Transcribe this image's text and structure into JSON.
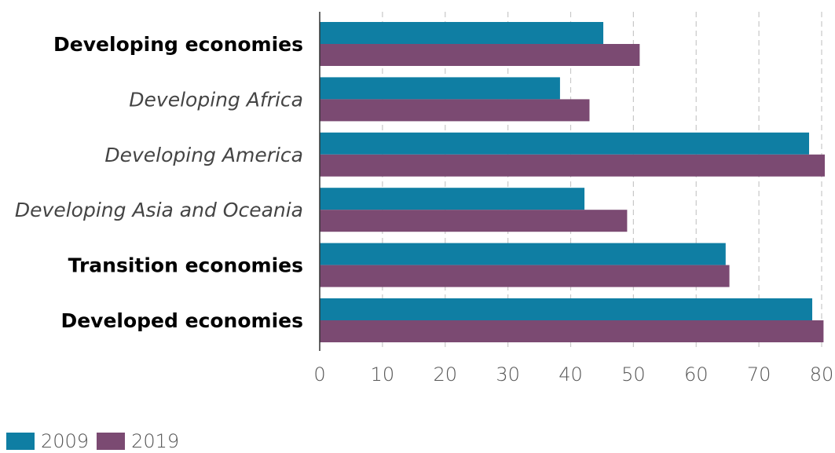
{
  "chart_data": {
    "type": "bar",
    "orientation": "horizontal",
    "categories": [
      {
        "label": "Developing economies",
        "style": "bold"
      },
      {
        "label": "Developing Africa",
        "style": "italic"
      },
      {
        "label": "Developing America",
        "style": "italic"
      },
      {
        "label": "Developing Asia and Oceania",
        "style": "italic"
      },
      {
        "label": "Transition economies",
        "style": "bold"
      },
      {
        "label": "Developed economies",
        "style": "bold"
      }
    ],
    "series": [
      {
        "name": "2009",
        "color": "#0f7ea3",
        "values": [
          45.2,
          38.3,
          78.0,
          42.2,
          64.7,
          78.5
        ]
      },
      {
        "name": "2019",
        "color": "#7b4a72",
        "values": [
          51.0,
          43.0,
          80.5,
          49.0,
          65.3,
          80.3
        ]
      }
    ],
    "xlim": [
      0,
      80
    ],
    "xticks": [
      "0",
      "10",
      "20",
      "30",
      "40",
      "50",
      "60",
      "70",
      "80"
    ],
    "grid": "vertical-dashed",
    "legend_position": "bottom-left",
    "title": "",
    "xlabel": "",
    "ylabel": ""
  }
}
